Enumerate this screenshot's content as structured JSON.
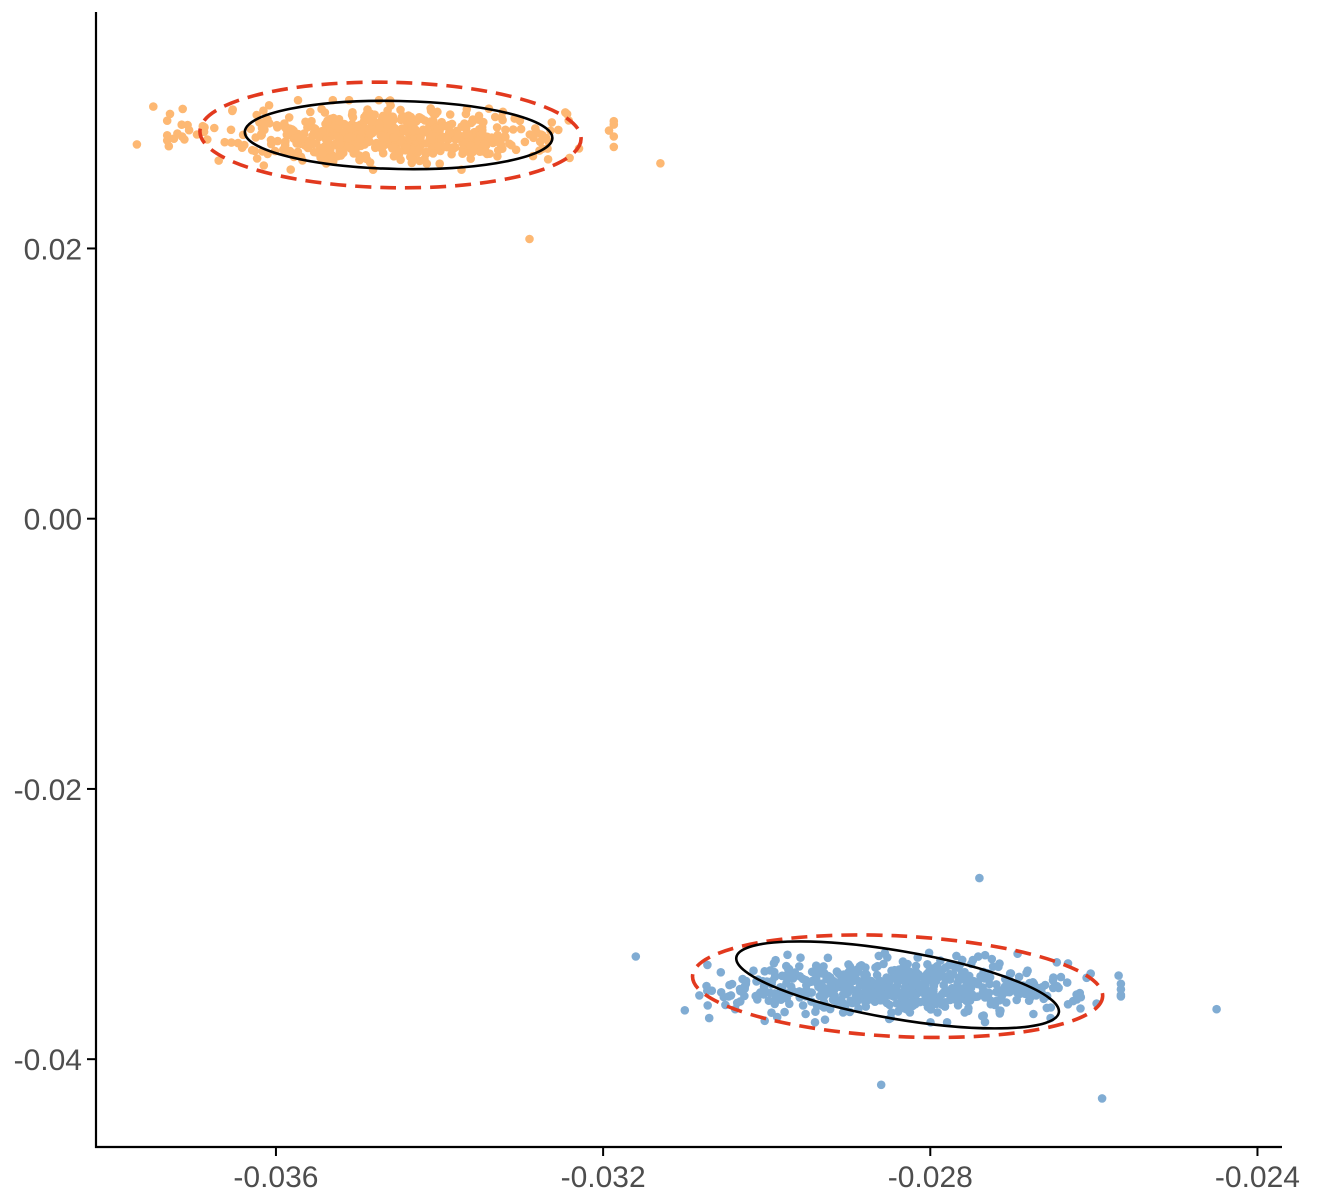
{
  "chart_data": {
    "type": "scatter",
    "title": "",
    "xlabel": "",
    "ylabel": "",
    "xlim": [
      -0.0382,
      -0.0237
    ],
    "ylim": [
      -0.0465,
      0.0375
    ],
    "x_ticks": [
      -0.036,
      -0.032,
      -0.028,
      -0.024
    ],
    "x_tick_labels": [
      "-0.036",
      "-0.032",
      "-0.028",
      "-0.024"
    ],
    "y_ticks": [
      0.02,
      0.0,
      -0.02,
      -0.04
    ],
    "y_tick_labels": [
      "0.02",
      "0.00",
      "-0.02",
      "-0.04"
    ],
    "grid": false,
    "legend": "none",
    "series": [
      {
        "color": "#fdb873",
        "center": [
          -0.0346,
          0.0284
        ],
        "spread": [
          0.00105,
          0.00165
        ],
        "n_points": 600,
        "outliers": [
          [
            -0.0377,
            0.0277
          ],
          [
            -0.0375,
            0.0305
          ],
          [
            -0.0313,
            0.0263
          ],
          [
            -0.0329,
            0.0207
          ],
          [
            -0.0367,
            0.0265
          ]
        ],
        "ellipse_inner": {
          "center": [
            -0.0345,
            0.0284
          ],
          "semi_axes": [
            0.00188,
            0.0042
          ],
          "tilt": -0.02
        },
        "ellipse_outer": {
          "center": [
            -0.0346,
            0.0284
          ],
          "semi_axes": [
            0.00233,
            0.0065
          ],
          "tilt": -0.02
        }
      },
      {
        "color": "#80acd3",
        "center": [
          -0.0284,
          -0.0347
        ],
        "spread": [
          0.00105,
          0.00165
        ],
        "n_points": 600,
        "outliers": [
          [
            -0.0259,
            -0.0429
          ],
          [
            -0.0245,
            -0.0363
          ],
          [
            -0.0286,
            -0.0419
          ],
          [
            -0.0316,
            -0.0324
          ],
          [
            -0.0274,
            -0.0266
          ]
        ],
        "ellipse_inner": {
          "center": [
            -0.0284,
            -0.0345
          ],
          "semi_axes": [
            0.002,
            0.0042
          ],
          "tilt": -0.17
        },
        "ellipse_outer": {
          "center": [
            -0.0284,
            -0.0346
          ],
          "semi_axes": [
            0.00251,
            0.0062
          ],
          "tilt": -0.05
        }
      }
    ],
    "ellipse_colors": {
      "inner": "#000000",
      "outer": "#e2391e"
    }
  }
}
